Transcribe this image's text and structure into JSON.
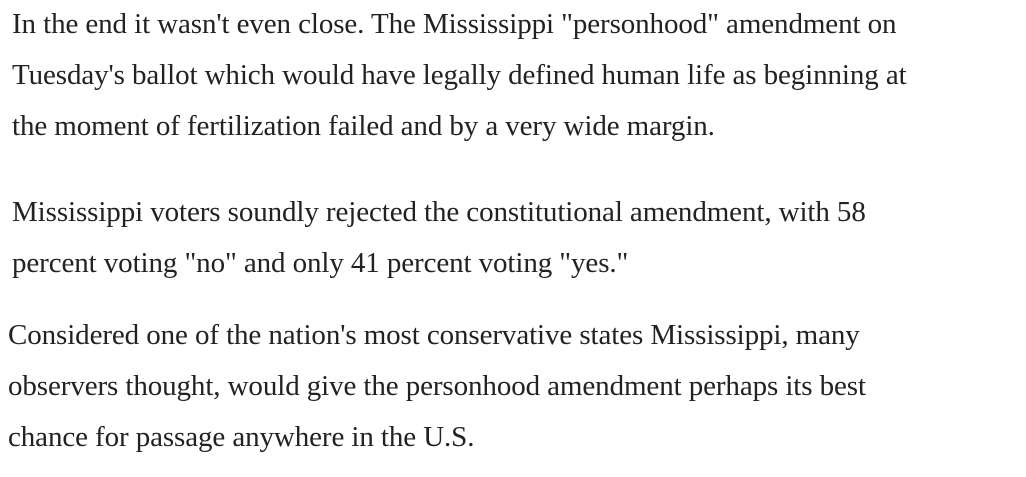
{
  "article": {
    "paragraphs": [
      {
        "lines": [
          "In the end it wasn't even close. The Mississippi \"personhood\" amendment on",
          "Tuesday's ballot which would have legally defined human life as beginning at",
          "the moment of fertilization failed and by a very wide margin."
        ]
      },
      {
        "lines": [
          "Mississippi voters soundly rejected the constitutional amendment, with 58",
          "percent voting \"no\" and only 41 percent voting \"yes.\""
        ]
      },
      {
        "lines": [
          "Considered one of the nation's most conservative states Mississippi, many",
          "observers thought, would give the personhood amendment perhaps its best",
          "chance for passage anywhere in the U.S."
        ]
      }
    ]
  }
}
